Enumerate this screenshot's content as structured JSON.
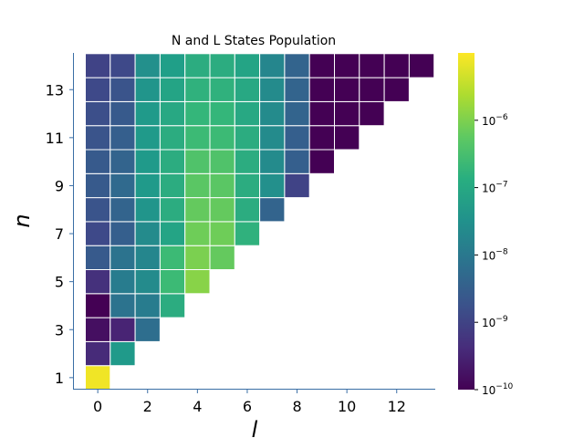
{
  "chart_data": {
    "type": "heatmap",
    "title": "N and L States Population",
    "xlabel": "l",
    "ylabel": "n",
    "x_ticks": [
      "0",
      "2",
      "4",
      "6",
      "8",
      "10",
      "12"
    ],
    "y_ticks": [
      "1",
      "3",
      "5",
      "7",
      "9",
      "11",
      "13"
    ],
    "xlim": [
      -0.5,
      13.5
    ],
    "ylim": [
      0.5,
      14.5
    ],
    "colorscale": "viridis",
    "color_scale": "log",
    "color_range": [
      1e-10,
      1e-05
    ],
    "colorbar_ticks": [
      -10,
      -9,
      -8,
      -7,
      -6
    ],
    "colorbar_tick_labels": [
      "10",
      "10",
      "10",
      "10",
      "10"
    ],
    "colorbar_tick_exponents": [
      "−10",
      "−9",
      "−8",
      "−7",
      "−6"
    ],
    "grid": false,
    "note_values": "log10 of population, one row per n (n = 1..14), entry index = l",
    "rows": [
      {
        "n": 1,
        "log10_values": [
          -5.1
        ]
      },
      {
        "n": 2,
        "log10_values": [
          -9.4,
          -7.3
        ]
      },
      {
        "n": 3,
        "log10_values": [
          -9.8,
          -9.5,
          -8.2
        ]
      },
      {
        "n": 4,
        "log10_values": [
          -10.0,
          -8.1,
          -7.9,
          -6.9
        ]
      },
      {
        "n": 5,
        "log10_values": [
          -9.3,
          -7.9,
          -7.6,
          -6.6,
          -5.9
        ]
      },
      {
        "n": 6,
        "log10_values": [
          -8.6,
          -8.1,
          -7.7,
          -6.6,
          -6.0,
          -6.2
        ]
      },
      {
        "n": 7,
        "log10_values": [
          -8.9,
          -8.5,
          -7.6,
          -7.1,
          -6.1,
          -6.1,
          -6.8
        ]
      },
      {
        "n": 8,
        "log10_values": [
          -8.7,
          -8.4,
          -7.4,
          -6.9,
          -6.2,
          -6.2,
          -6.9,
          -8.4
        ]
      },
      {
        "n": 9,
        "log10_values": [
          -8.6,
          -8.3,
          -7.3,
          -6.9,
          -6.3,
          -6.3,
          -6.9,
          -7.5,
          -9.0
        ]
      },
      {
        "n": 10,
        "log10_values": [
          -8.6,
          -8.4,
          -7.3,
          -6.9,
          -6.4,
          -6.4,
          -6.9,
          -7.6,
          -8.5,
          -10.0
        ]
      },
      {
        "n": 11,
        "log10_values": [
          -8.7,
          -8.5,
          -7.3,
          -6.9,
          -6.6,
          -6.6,
          -6.9,
          -7.6,
          -8.5,
          -10.0,
          -10.0
        ]
      },
      {
        "n": 12,
        "log10_values": [
          -8.8,
          -8.6,
          -7.3,
          -7.0,
          -6.7,
          -6.7,
          -7.0,
          -7.6,
          -8.4,
          -10.0,
          -10.0,
          -10.0
        ]
      },
      {
        "n": 13,
        "log10_values": [
          -8.9,
          -8.7,
          -7.4,
          -7.1,
          -6.8,
          -6.8,
          -7.0,
          -7.6,
          -8.4,
          -10.0,
          -10.0,
          -10.0,
          -10.0
        ]
      },
      {
        "n": 14,
        "log10_values": [
          -9.0,
          -8.9,
          -7.5,
          -7.2,
          -6.9,
          -6.9,
          -7.1,
          -7.7,
          -8.4,
          -10.0,
          -10.0,
          -10.0,
          -10.0,
          -10.0
        ]
      }
    ]
  }
}
